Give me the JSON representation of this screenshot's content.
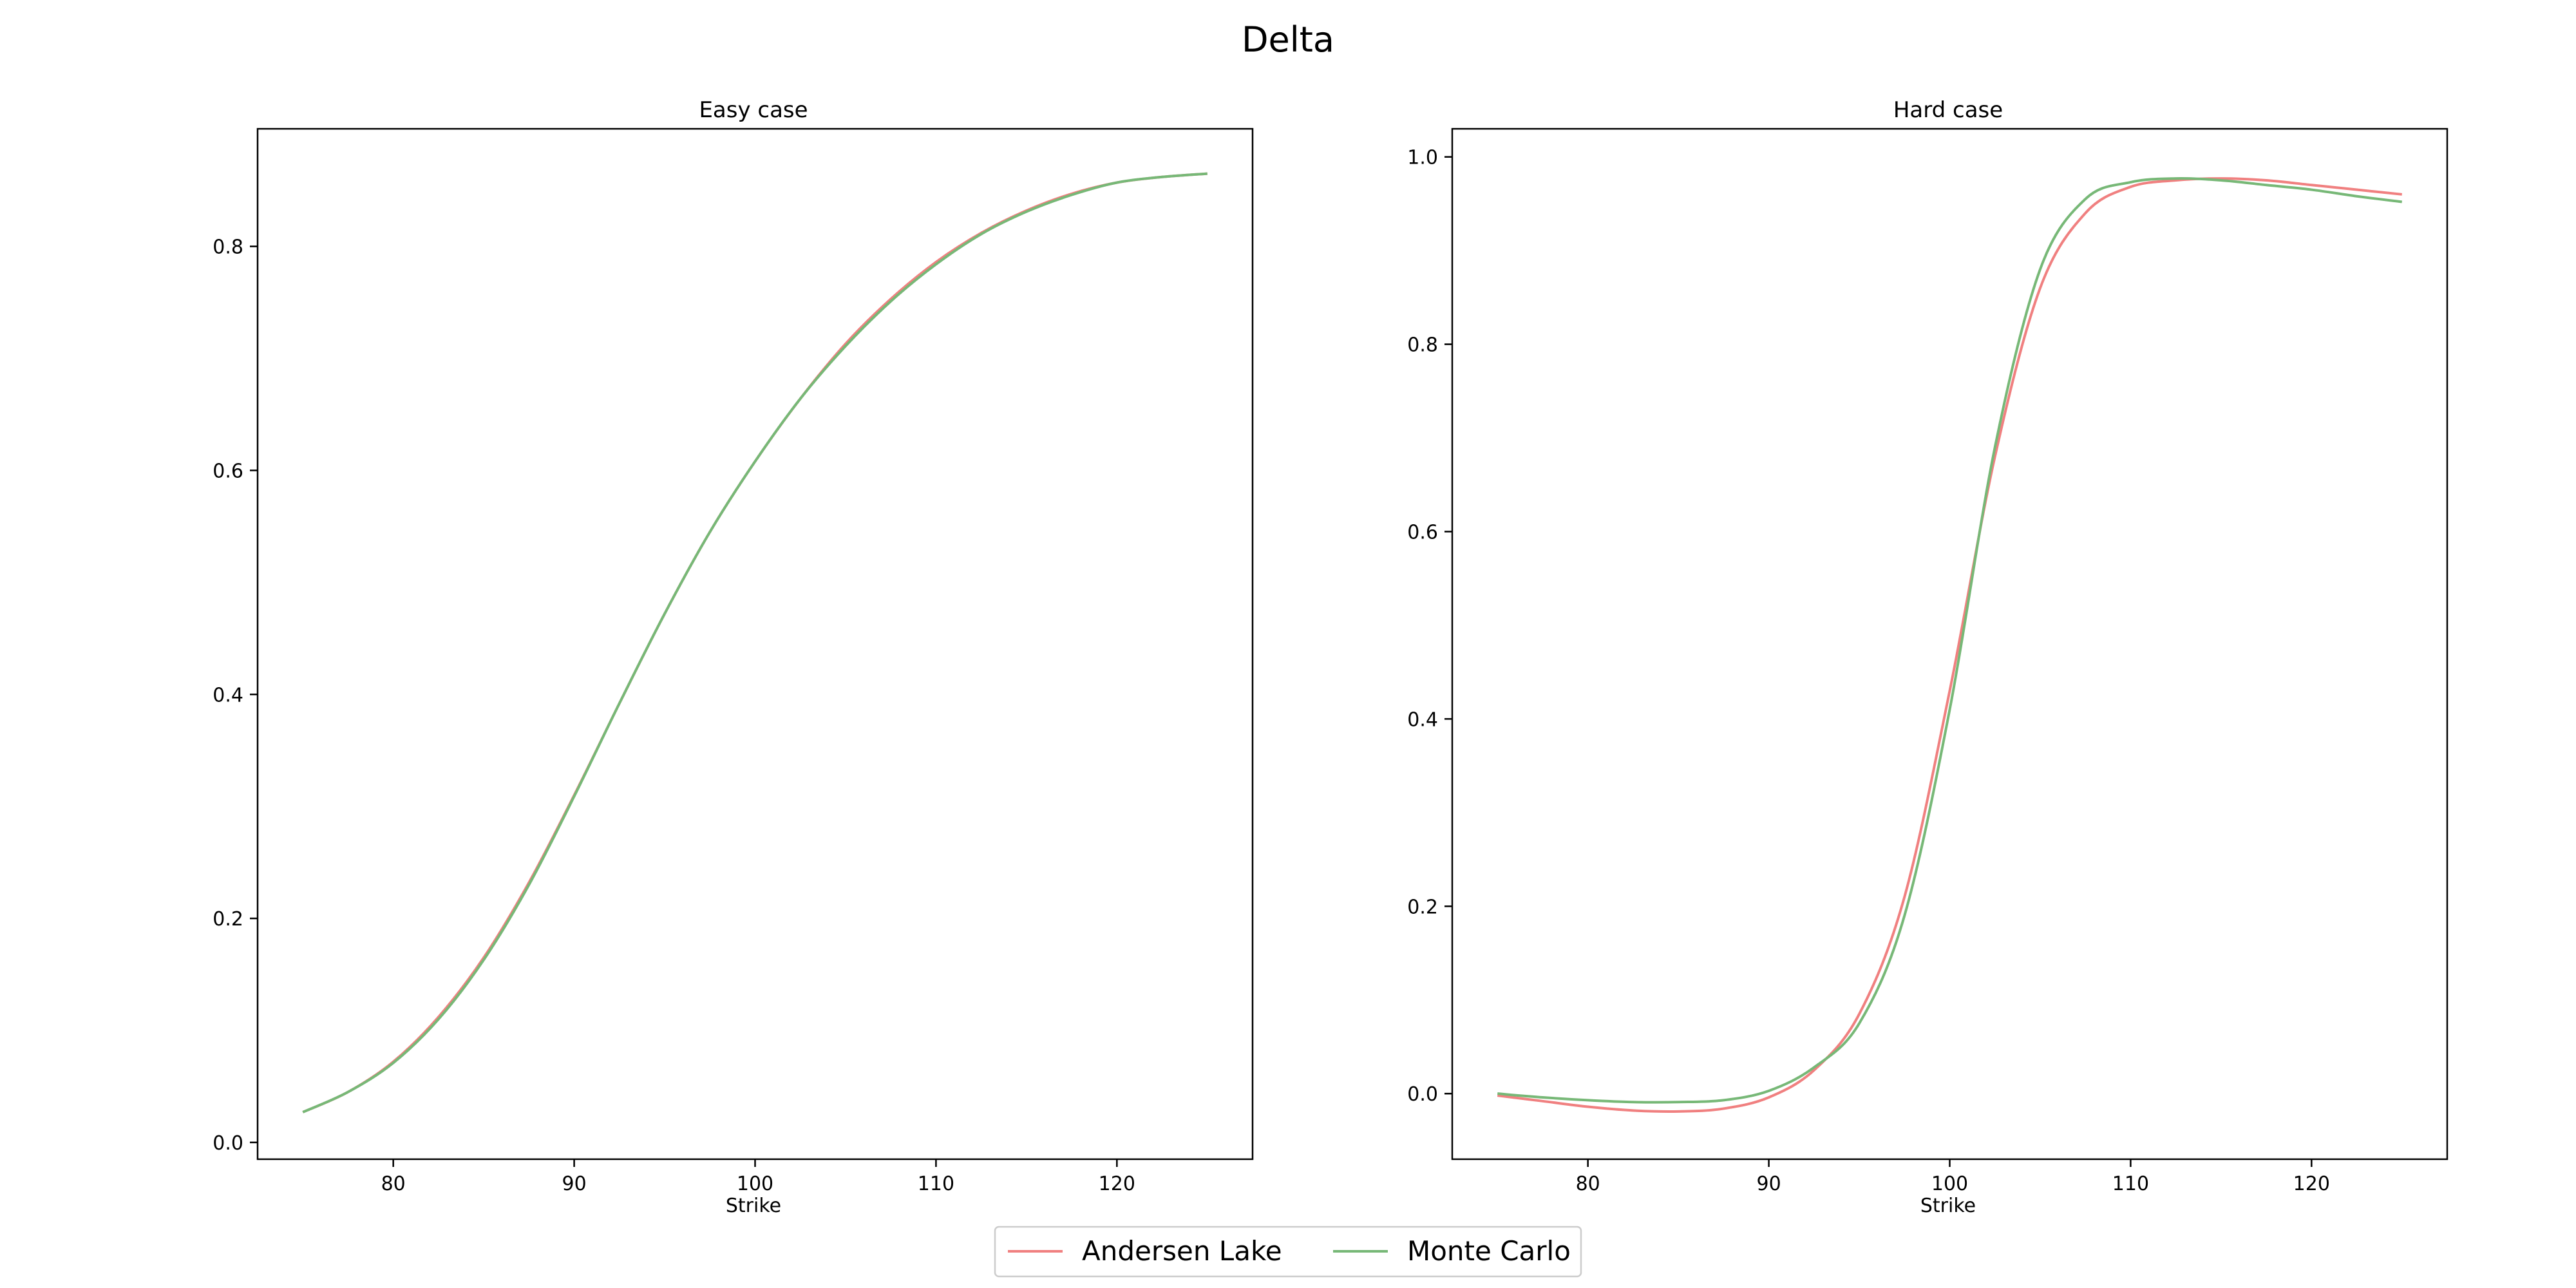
{
  "figure": {
    "title": "Delta",
    "legend_position": "lower center"
  },
  "chart_data": [
    {
      "type": "line",
      "title": "Easy case",
      "xlabel": "Strike",
      "ylabel": "",
      "xlim": [
        72.5,
        127.5
      ],
      "ylim": [
        -0.015,
        0.905
      ],
      "xticks": [
        80,
        90,
        100,
        110,
        120
      ],
      "yticks": [
        0.0,
        0.2,
        0.4,
        0.6,
        0.8
      ],
      "ytick_labels": [
        "0.0",
        "0.2",
        "0.4",
        "0.6",
        "0.8"
      ],
      "grid": false,
      "x": [
        75,
        77.5,
        80,
        82.5,
        85,
        87.5,
        90,
        92.5,
        95,
        97.5,
        100,
        102.5,
        105,
        107.5,
        110,
        112.5,
        115,
        117.5,
        120,
        122.5,
        125
      ],
      "series": [
        {
          "name": "Andersen Lake",
          "color": "#f08080",
          "values": [
            0.027,
            0.045,
            0.072,
            0.112,
            0.165,
            0.232,
            0.31,
            0.392,
            0.472,
            0.545,
            0.608,
            0.664,
            0.713,
            0.753,
            0.786,
            0.812,
            0.832,
            0.847,
            0.857,
            0.862,
            0.865
          ]
        },
        {
          "name": "Monte Carlo",
          "color": "#77b877",
          "values": [
            0.027,
            0.045,
            0.071,
            0.11,
            0.163,
            0.23,
            0.309,
            0.392,
            0.472,
            0.545,
            0.608,
            0.664,
            0.711,
            0.751,
            0.784,
            0.811,
            0.831,
            0.846,
            0.857,
            0.862,
            0.865
          ]
        }
      ]
    },
    {
      "type": "line",
      "title": "Hard case",
      "xlabel": "Strike",
      "ylabel": "",
      "xlim": [
        72.5,
        127.5
      ],
      "ylim": [
        -0.07,
        1.03
      ],
      "xticks": [
        80,
        90,
        100,
        110,
        120
      ],
      "yticks": [
        0.0,
        0.2,
        0.4,
        0.6,
        0.8,
        1.0
      ],
      "ytick_labels": [
        "0.0",
        "0.2",
        "0.4",
        "0.6",
        "0.8",
        "1.0"
      ],
      "grid": false,
      "x": [
        75,
        77.5,
        80,
        82.5,
        85,
        87.5,
        90,
        92.5,
        95,
        97.5,
        100,
        102.5,
        105,
        107.5,
        110,
        112.5,
        115,
        117.5,
        120,
        122.5,
        125
      ],
      "series": [
        {
          "name": "Andersen Lake",
          "color": "#f08080",
          "values": [
            -0.002,
            -0.008,
            -0.014,
            -0.018,
            -0.019,
            -0.016,
            -0.004,
            0.025,
            0.085,
            0.21,
            0.43,
            0.68,
            0.86,
            0.94,
            0.968,
            0.975,
            0.977,
            0.975,
            0.97,
            0.965,
            0.96
          ]
        },
        {
          "name": "Monte Carlo",
          "color": "#77b877",
          "values": [
            0.0,
            -0.004,
            -0.007,
            -0.009,
            -0.009,
            -0.007,
            0.003,
            0.028,
            0.075,
            0.19,
            0.41,
            0.69,
            0.88,
            0.955,
            0.973,
            0.977,
            0.975,
            0.97,
            0.965,
            0.958,
            0.952
          ]
        }
      ]
    }
  ]
}
